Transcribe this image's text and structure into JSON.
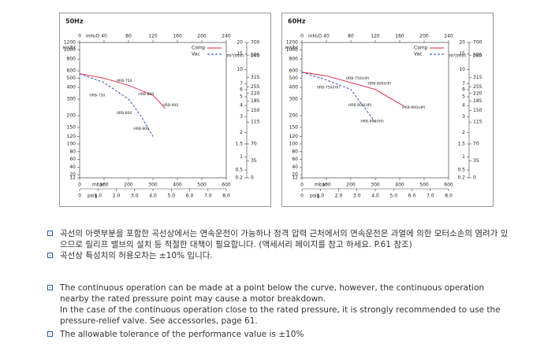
{
  "chart_data": [
    {
      "type": "line",
      "title": "50Hz",
      "x_label": "mbar",
      "xlim": [
        0,
        600
      ],
      "xticks": [
        0,
        100,
        200,
        300,
        400,
        500,
        600
      ],
      "x2_label": "inH₂O",
      "x2lim": [
        0,
        240
      ],
      "x2ticks": [
        0,
        40,
        80,
        120,
        160,
        200,
        240
      ],
      "x3_label": "psig",
      "x3lim": [
        0,
        8
      ],
      "x3ticks": [
        0,
        {
          "value": 1,
          "label": "1.0"
        },
        {
          "value": 2,
          "label": "2.0"
        },
        {
          "value": 3,
          "label": "3.0"
        },
        {
          "value": 4,
          "label": "4.0"
        },
        {
          "value": 5,
          "label": "5.0"
        },
        {
          "value": 6,
          "label": "6.0"
        },
        {
          "value": 7,
          "label": "7.0"
        },
        {
          "value": 8,
          "label": "8.0"
        }
      ],
      "y_label": "m³/hr",
      "ylim": [
        12,
        1200
      ],
      "yticks": [
        1200,
        1000,
        800,
        600,
        500,
        400,
        300,
        200,
        150,
        120,
        100,
        80,
        60,
        40,
        20,
        12
      ],
      "yscale": {
        "type": "log",
        "linear_below": 100
      },
      "y2_label": "m³/min",
      "y2lim": [
        0.2,
        20
      ],
      "y2ticks": [
        20,
        15,
        10,
        7,
        6,
        5,
        4,
        3,
        2,
        1.5,
        1,
        0.5,
        0.2
      ],
      "y2scale": {
        "type": "log",
        "linear_below": 1.5
      },
      "y3_label": "cfm",
      "y3lim": [
        0,
        700
      ],
      "y3ticks": [
        700,
        525,
        315,
        255,
        220,
        185,
        150,
        115,
        70,
        35,
        0
      ],
      "y3scale": {
        "type": "log",
        "linear_below": 70
      },
      "legend": "upper right",
      "series": [
        {
          "name": "Comp",
          "color": "#e0203a",
          "dash": false,
          "x": [
            0,
            100,
            200,
            300,
            350
          ],
          "values": [
            560,
            500,
            420,
            330,
            240
          ]
        },
        {
          "name": "Vac",
          "color": "#2a3fbf",
          "dash": true,
          "x": [
            0,
            100,
            200,
            250,
            300
          ],
          "values": [
            560,
            450,
            300,
            200,
            120
          ]
        }
      ],
      "annotations": [
        {
          "text": "HRB-750",
          "x": 150,
          "y": 470
        },
        {
          "text": "HRB-800",
          "x": 240,
          "y": 340
        },
        {
          "text": "HRB-900",
          "x": 340,
          "y": 260
        },
        {
          "text": "HRB-750",
          "x": 40,
          "y": 330
        },
        {
          "text": "HRB-800",
          "x": 150,
          "y": 215
        },
        {
          "text": "HRB-900",
          "x": 220,
          "y": 145
        }
      ]
    },
    {
      "type": "line",
      "title": "60Hz",
      "x_label": "mbar",
      "xlim": [
        0,
        600
      ],
      "xticks": [
        0,
        100,
        200,
        300,
        400,
        500,
        600
      ],
      "x2_label": "inH₂O",
      "x2lim": [
        0,
        240
      ],
      "x2ticks": [
        0,
        40,
        80,
        120,
        160,
        200,
        240
      ],
      "x3_label": "psig",
      "x3lim": [
        0,
        8
      ],
      "x3ticks": [
        0,
        {
          "value": 1,
          "label": "1.0"
        },
        {
          "value": 2,
          "label": "2.0"
        },
        {
          "value": 3,
          "label": "3.0"
        },
        {
          "value": 4,
          "label": "4.0"
        },
        {
          "value": 5,
          "label": "5.0"
        },
        {
          "value": 6,
          "label": "6.0"
        },
        {
          "value": 7,
          "label": "7.0"
        },
        {
          "value": 8,
          "label": "8.0"
        }
      ],
      "y_label": "m³/hr",
      "ylim": [
        12,
        1200
      ],
      "yticks": [
        1200,
        1000,
        800,
        600,
        500,
        400,
        300,
        200,
        150,
        120,
        100,
        80,
        60,
        40,
        20,
        12
      ],
      "yscale": {
        "type": "log",
        "linear_below": 100
      },
      "y2_label": "m³/min",
      "y2lim": [
        0.2,
        20
      ],
      "y2ticks": [
        20,
        15,
        10,
        7,
        6,
        5,
        4,
        3,
        2,
        1.5,
        1,
        0.5,
        0.2
      ],
      "y2scale": {
        "type": "log",
        "linear_below": 1.5
      },
      "y3_label": "cfm",
      "y3lim": [
        0,
        700
      ],
      "y3ticks": [
        700,
        525,
        315,
        255,
        220,
        185,
        150,
        115,
        70,
        35,
        0
      ],
      "y3scale": {
        "type": "log",
        "linear_below": 70
      },
      "legend": "upper right",
      "series": [
        {
          "name": "Comp",
          "color": "#e0203a",
          "dash": false,
          "x": [
            0,
            100,
            200,
            300,
            420
          ],
          "values": [
            580,
            530,
            450,
            380,
            250
          ]
        },
        {
          "name": "Vac",
          "color": "#2a3fbf",
          "dash": true,
          "x": [
            0,
            100,
            200,
            300
          ],
          "values": [
            580,
            480,
            380,
            170
          ]
        }
      ],
      "annotations": [
        {
          "text": "HRB-750(HP)",
          "x": 180,
          "y": 500
        },
        {
          "text": "HRB-800(HP)",
          "x": 270,
          "y": 440
        },
        {
          "text": "HRB-900(HP)",
          "x": 410,
          "y": 245
        },
        {
          "text": "HRB-750(HP)",
          "x": 60,
          "y": 400
        },
        {
          "text": "HRB-800(HP)",
          "x": 190,
          "y": 260
        },
        {
          "text": "HRB-900(HP)",
          "x": 240,
          "y": 175
        }
      ]
    }
  ],
  "notes": {
    "korean": [
      "곡선의 아랫부분을 포함한 곡선상에서는 연속운전이 가능하나 정격 압력 근처에서의 연속운전은 과열에 의한 모터소손의 염려가 있으므로 릴리프 밸브의 설치 등 적절한 대책이 필요합니다. (액세서리 페이지를 참고 하세요. P.61 참조)",
      "곡선상 특성치의 허용오차는 ±10% 입니다."
    ],
    "english": [
      [
        "The continuous operation can be made at a point below the curve, however, the continuous operation nearby the rated pressure point may cause a motor breakdown.",
        "In the case of the continuous operation close to the rated pressure, it is strongly recommended to use the pressure-relief valve. See accessories, page 61."
      ],
      [
        "The allowable tolerance of the performance value is ±10%"
      ]
    ]
  }
}
